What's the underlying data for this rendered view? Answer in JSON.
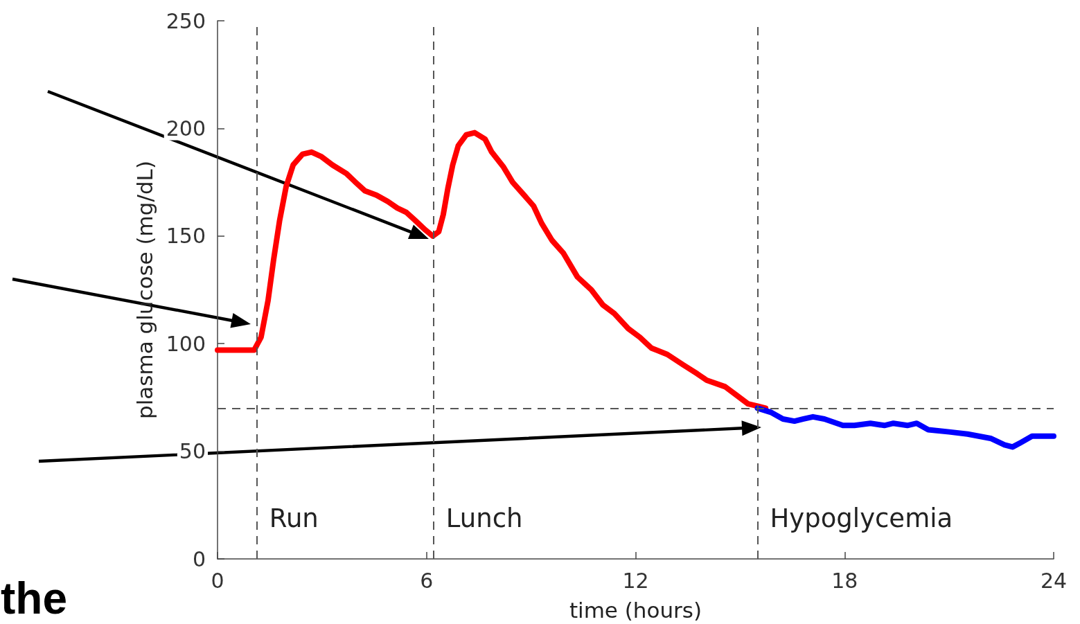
{
  "chart_data": {
    "type": "line",
    "xlabel": "time (hours)",
    "ylabel": "plasma glucose (mg/dL)",
    "xlim": [
      0,
      24
    ],
    "xticks": [
      0,
      6,
      12,
      18,
      24
    ],
    "ylim": [
      0,
      250
    ],
    "yticks": [
      0,
      50,
      100,
      150,
      200,
      250
    ],
    "marker": "none",
    "line_style": "solid",
    "series": [
      {
        "color": "#ff0000",
        "x": [
          0,
          1.05,
          1.25,
          1.45,
          1.61,
          1.78,
          1.97,
          2.17,
          2.44,
          2.7,
          2.97,
          3.3,
          3.7,
          3.96,
          4.23,
          4.56,
          4.89,
          5.16,
          5.42,
          5.69,
          5.95,
          6.18,
          6.35,
          6.48,
          6.61,
          6.75,
          6.91,
          7.14,
          7.38,
          7.68,
          7.87,
          8.21,
          8.47,
          8.8,
          9.07,
          9.3,
          9.6,
          9.93,
          10.33,
          10.73,
          11.06,
          11.39,
          11.79,
          12.12,
          12.45,
          12.91,
          13.38,
          13.77,
          14.04,
          14.57,
          14.9,
          15.23,
          15.5,
          15.73
        ],
        "values": [
          97,
          97,
          103,
          120,
          139,
          157,
          173,
          183,
          188,
          189,
          187,
          183,
          179,
          175,
          171,
          169,
          166,
          163,
          161,
          157,
          153,
          150,
          152,
          160,
          172,
          183,
          192,
          197,
          198,
          195,
          189,
          182,
          175,
          169,
          164,
          156,
          148,
          142,
          131,
          125,
          118,
          114,
          107,
          103,
          98,
          95,
          90,
          86,
          83,
          80,
          76,
          72,
          71,
          70
        ]
      },
      {
        "color": "#0000ff",
        "x": [
          15.5,
          15.9,
          16.23,
          16.56,
          16.82,
          17.09,
          17.42,
          17.95,
          18.28,
          18.74,
          19.14,
          19.4,
          19.8,
          20.07,
          20.4,
          21,
          21.53,
          22.19,
          22.59,
          22.82,
          23.05,
          23.38,
          23.91,
          24
        ],
        "values": [
          70,
          68,
          65,
          64,
          65,
          66,
          65,
          62,
          62,
          63,
          62,
          63,
          62,
          63,
          60,
          59,
          58,
          56,
          53,
          52,
          54,
          57,
          57,
          57
        ]
      }
    ],
    "ref_lines": [
      {
        "axis": "x",
        "value": 1.13,
        "label": "Run",
        "color": "#555555",
        "line_style": "dashed"
      },
      {
        "axis": "x",
        "value": 6.2,
        "label": "Lunch",
        "color": "#555555",
        "line_style": "dashed"
      },
      {
        "axis": "x",
        "value": 15.5,
        "label": "Hypoglycemia",
        "color": "#555555",
        "line_style": "dashed"
      },
      {
        "axis": "y",
        "value": 70,
        "color": "#555555",
        "line_style": "dashed"
      }
    ],
    "annotations": [
      "the"
    ]
  }
}
